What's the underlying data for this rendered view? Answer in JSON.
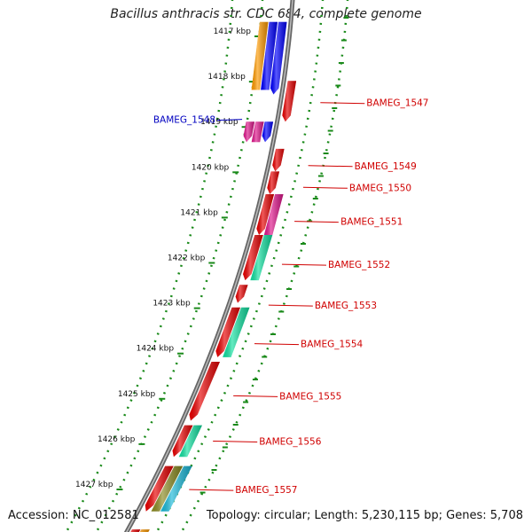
{
  "title": "Bacillus anthracis str. CDC 684, complete genome",
  "accession": "Accession: NC_012581",
  "topology": "Topology: circular; Length: 5,230,115 bp; Genes: 5,708",
  "colors": {
    "red": "#e80000",
    "magenta": "#e0168c",
    "green": "#10e0a0",
    "blue": "#0000ff",
    "orange": "#ff9a00",
    "olive": "#8a8a20",
    "cyan": "#18b8d8",
    "label_red": "#d00000",
    "label_blue": "#0000c0",
    "tick_green": "#1a8a1a",
    "backbone": "#777777"
  },
  "ticks": [
    {
      "kbp": 1417,
      "label": "1417 kbp"
    },
    {
      "kbp": 1418,
      "label": "1418 kbp"
    },
    {
      "kbp": 1419,
      "label": "1419 kbp"
    },
    {
      "kbp": 1420,
      "label": "1420 kbp"
    },
    {
      "kbp": 1421,
      "label": "1421 kbp"
    },
    {
      "kbp": 1422,
      "label": "1422 kbp"
    },
    {
      "kbp": 1423,
      "label": "1423 kbp"
    },
    {
      "kbp": 1424,
      "label": "1424 kbp"
    },
    {
      "kbp": 1425,
      "label": "1425 kbp"
    },
    {
      "kbp": 1426,
      "label": "1426 kbp"
    },
    {
      "kbp": 1427,
      "label": "1427 kbp"
    }
  ],
  "gene_labels": [
    {
      "name": "BAMEG_1547",
      "kbp": 1418.58,
      "side": "right"
    },
    {
      "name": "BAMEG_1548",
      "kbp": 1418.95,
      "side": "left"
    },
    {
      "name": "BAMEG_1549",
      "kbp": 1419.97,
      "side": "right"
    },
    {
      "name": "BAMEG_1550",
      "kbp": 1420.45,
      "side": "right"
    },
    {
      "name": "BAMEG_1551",
      "kbp": 1421.2,
      "side": "right"
    },
    {
      "name": "BAMEG_1552",
      "kbp": 1422.15,
      "side": "right"
    },
    {
      "name": "BAMEG_1553",
      "kbp": 1423.05,
      "side": "right"
    },
    {
      "name": "BAMEG_1554",
      "kbp": 1423.9,
      "side": "right"
    },
    {
      "name": "BAMEG_1555",
      "kbp": 1425.05,
      "side": "right"
    },
    {
      "name": "BAMEG_1556",
      "kbp": 1426.05,
      "side": "right"
    },
    {
      "name": "BAMEG_1557",
      "kbp": 1427.12,
      "side": "right"
    }
  ],
  "features": [
    {
      "lane": 1,
      "start": 1416.8,
      "end": 1418.4,
      "color": "blue",
      "dir": "fwd"
    },
    {
      "lane": 2,
      "start": 1416.8,
      "end": 1418.3,
      "color": "blue",
      "dir": "none"
    },
    {
      "lane": 3,
      "start": 1416.8,
      "end": 1418.3,
      "color": "orange",
      "dir": "none"
    },
    {
      "lane": 1,
      "start": 1419.0,
      "end": 1419.45,
      "color": "blue",
      "dir": "fwd"
    },
    {
      "lane": 2,
      "start": 1419.0,
      "end": 1419.45,
      "color": "magenta",
      "dir": "none"
    },
    {
      "lane": 3,
      "start": 1419.0,
      "end": 1419.45,
      "color": "magenta",
      "dir": "fwd"
    },
    {
      "lane": -1,
      "start": 1418.1,
      "end": 1419.0,
      "color": "red",
      "dir": "fwd"
    },
    {
      "lane": -1,
      "start": 1419.6,
      "end": 1420.1,
      "color": "red",
      "dir": "fwd"
    },
    {
      "lane": -1,
      "start": 1420.1,
      "end": 1420.6,
      "color": "red",
      "dir": "fwd"
    },
    {
      "lane": -1,
      "start": 1420.6,
      "end": 1421.5,
      "color": "red",
      "dir": "fwd"
    },
    {
      "lane": -2,
      "start": 1420.6,
      "end": 1421.5,
      "color": "magenta",
      "dir": "none"
    },
    {
      "lane": -1,
      "start": 1421.5,
      "end": 1422.5,
      "color": "red",
      "dir": "fwd"
    },
    {
      "lane": -2,
      "start": 1421.5,
      "end": 1422.5,
      "color": "green",
      "dir": "none"
    },
    {
      "lane": -1,
      "start": 1422.6,
      "end": 1423.0,
      "color": "red",
      "dir": "fwd"
    },
    {
      "lane": -1,
      "start": 1423.1,
      "end": 1424.2,
      "color": "red",
      "dir": "fwd"
    },
    {
      "lane": -2,
      "start": 1423.1,
      "end": 1424.2,
      "color": "green",
      "dir": "none"
    },
    {
      "lane": -1,
      "start": 1424.3,
      "end": 1425.6,
      "color": "red",
      "dir": "fwd"
    },
    {
      "lane": -1,
      "start": 1425.7,
      "end": 1426.4,
      "color": "red",
      "dir": "fwd"
    },
    {
      "lane": -2,
      "start": 1425.7,
      "end": 1426.4,
      "color": "green",
      "dir": "none"
    },
    {
      "lane": -1,
      "start": 1426.6,
      "end": 1427.6,
      "color": "red",
      "dir": "fwd"
    },
    {
      "lane": -2,
      "start": 1426.6,
      "end": 1427.6,
      "color": "olive",
      "dir": "none"
    },
    {
      "lane": -3,
      "start": 1426.6,
      "end": 1427.6,
      "color": "cyan",
      "dir": "none"
    },
    {
      "lane": -1,
      "start": 1428.0,
      "end": 1428.4,
      "color": "red",
      "dir": "fwd"
    },
    {
      "lane": -2,
      "start": 1428.0,
      "end": 1428.4,
      "color": "orange",
      "dir": "none"
    }
  ]
}
